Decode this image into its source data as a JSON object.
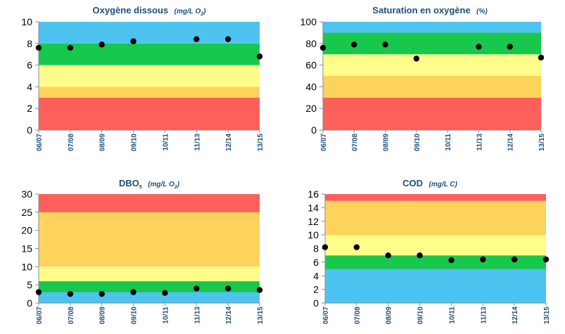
{
  "colors": {
    "blue": "#4dc3f0",
    "green": "#17c84c",
    "yellow": "#fefd8a",
    "orange": "#fdd35c",
    "red": "#fd605b",
    "title": "#1f4e79",
    "point": "#000000"
  },
  "chart_data": [
    {
      "type": "scatter",
      "title": "Oxygène dissous",
      "title_unit_prefix": "(mg/L O",
      "title_unit_sub": "2",
      "title_unit_suffix": ")",
      "categories": [
        "06/07",
        "07/08",
        "08/09",
        "09/10",
        "10/11",
        "11/13",
        "12/14",
        "13/15"
      ],
      "values": [
        7.6,
        7.6,
        7.9,
        8.2,
        null,
        8.4,
        8.4,
        6.8
      ],
      "ylim": [
        0,
        10
      ],
      "yticks": [
        0,
        2,
        4,
        6,
        8,
        10
      ],
      "bands": [
        {
          "from": 0,
          "to": 3,
          "color": "red"
        },
        {
          "from": 3,
          "to": 4,
          "color": "orange"
        },
        {
          "from": 4,
          "to": 6,
          "color": "yellow"
        },
        {
          "from": 6,
          "to": 8,
          "color": "green"
        },
        {
          "from": 8,
          "to": 10,
          "color": "blue"
        }
      ]
    },
    {
      "type": "scatter",
      "title": "Saturation en oxygène",
      "title_unit_prefix": "(%)",
      "title_unit_sub": "",
      "title_unit_suffix": "",
      "categories": [
        "06/07",
        "07/08",
        "08/09",
        "09/10",
        "10/11",
        "11/13",
        "12/14",
        "13/15"
      ],
      "values": [
        76,
        79,
        79,
        66,
        null,
        77,
        77,
        67
      ],
      "ylim": [
        0,
        100
      ],
      "yticks": [
        0,
        20,
        40,
        60,
        80,
        100
      ],
      "bands": [
        {
          "from": 0,
          "to": 30,
          "color": "red"
        },
        {
          "from": 30,
          "to": 50,
          "color": "orange"
        },
        {
          "from": 50,
          "to": 70,
          "color": "yellow"
        },
        {
          "from": 70,
          "to": 90,
          "color": "green"
        },
        {
          "from": 90,
          "to": 100,
          "color": "blue"
        }
      ]
    },
    {
      "type": "scatter",
      "title": "DBO",
      "title_sub": "5",
      "title_unit_prefix": "(mg/L O",
      "title_unit_sub": "2",
      "title_unit_suffix": ")",
      "categories": [
        "06/07",
        "07/08",
        "08/09",
        "09/10",
        "10/11",
        "11/13",
        "12/14",
        "13/15"
      ],
      "values": [
        3.0,
        2.5,
        2.5,
        3.0,
        2.8,
        4.0,
        4.0,
        3.6
      ],
      "ylim": [
        0,
        30
      ],
      "yticks": [
        0,
        5,
        10,
        15,
        20,
        25,
        30
      ],
      "bands": [
        {
          "from": 0,
          "to": 3,
          "color": "blue"
        },
        {
          "from": 3,
          "to": 6,
          "color": "green"
        },
        {
          "from": 6,
          "to": 10,
          "color": "yellow"
        },
        {
          "from": 10,
          "to": 25,
          "color": "orange"
        },
        {
          "from": 25,
          "to": 30,
          "color": "red"
        }
      ]
    },
    {
      "type": "scatter",
      "title": "COD",
      "title_unit_prefix": "(mg/L C)",
      "title_unit_sub": "",
      "title_unit_suffix": "",
      "categories": [
        "06/07",
        "07/08",
        "08/09",
        "09/10",
        "10/11",
        "11/13",
        "12/14",
        "13/15"
      ],
      "values": [
        8.2,
        8.2,
        7.0,
        7.0,
        6.3,
        6.4,
        6.4,
        6.4
      ],
      "ylim": [
        0,
        16
      ],
      "yticks": [
        0,
        2,
        4,
        6,
        8,
        10,
        12,
        14,
        16
      ],
      "bands": [
        {
          "from": 0,
          "to": 5,
          "color": "blue"
        },
        {
          "from": 5,
          "to": 7,
          "color": "green"
        },
        {
          "from": 7,
          "to": 10,
          "color": "yellow"
        },
        {
          "from": 10,
          "to": 15,
          "color": "orange"
        },
        {
          "from": 15,
          "to": 16,
          "color": "red"
        }
      ]
    }
  ]
}
